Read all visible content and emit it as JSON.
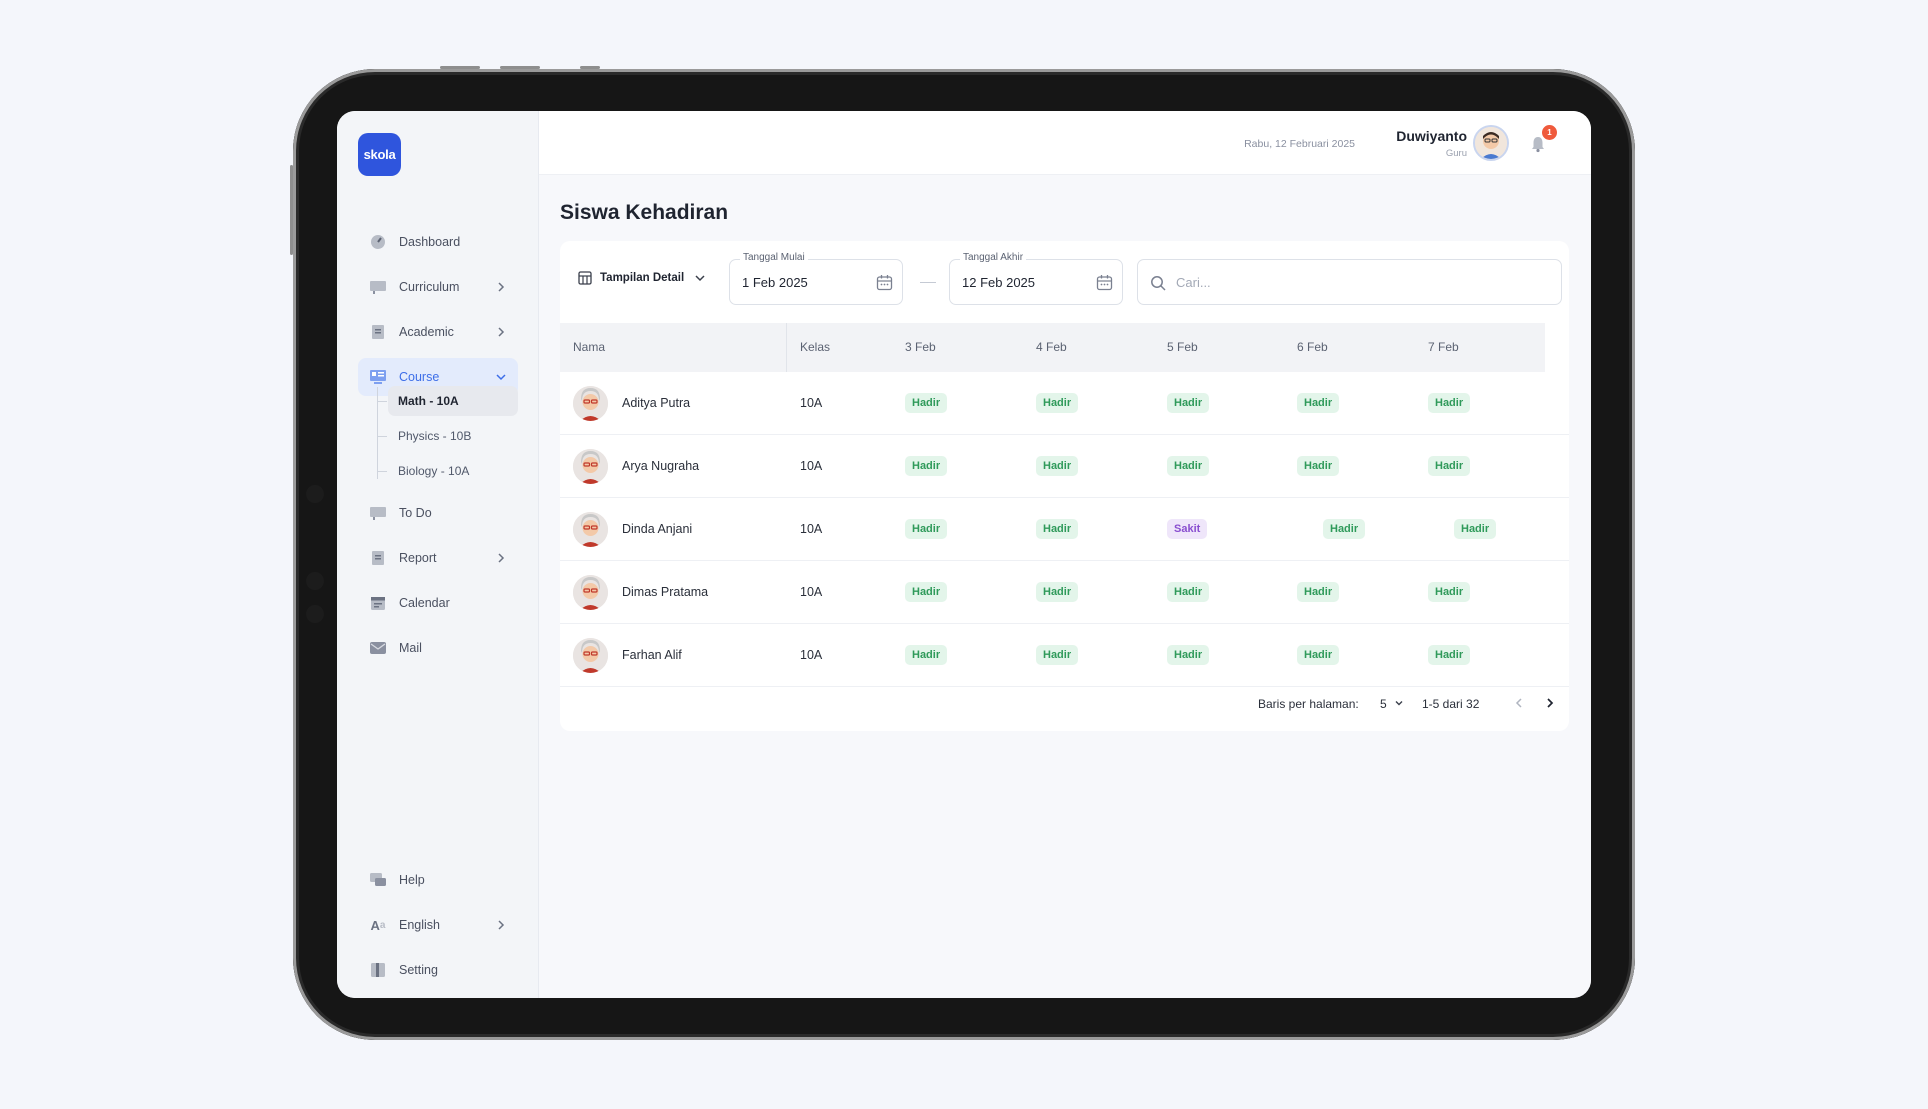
{
  "app": {
    "logo_text": "skola"
  },
  "header": {
    "date": "Rabu, 12 Februari 2025",
    "user_name": "Duwiyanto",
    "user_role": "Guru",
    "notification_count": "1"
  },
  "sidebar": {
    "items": [
      {
        "label": "Dashboard",
        "icon": "dashboard-icon"
      },
      {
        "label": "Curriculum",
        "icon": "curriculum-icon",
        "chevron": true
      },
      {
        "label": "Academic",
        "icon": "academic-icon",
        "chevron": true
      },
      {
        "label": "Course",
        "icon": "course-icon",
        "expanded": true,
        "active": true
      },
      {
        "label": "To Do",
        "icon": "todo-icon"
      },
      {
        "label": "Report",
        "icon": "report-icon",
        "chevron": true
      },
      {
        "label": "Calendar",
        "icon": "calendar-icon"
      },
      {
        "label": "Mail",
        "icon": "mail-icon"
      }
    ],
    "course_sub_items": [
      {
        "label": "Math - 10A",
        "active": true
      },
      {
        "label": "Physics - 10B"
      },
      {
        "label": "Biology - 10A"
      }
    ],
    "bottom_items": [
      {
        "label": "Help",
        "icon": "help-icon"
      },
      {
        "label": "English",
        "icon": "language-icon",
        "chevron": true
      },
      {
        "label": "Setting",
        "icon": "setting-icon"
      }
    ]
  },
  "main": {
    "title": "Siswa Kehadiran",
    "view_select": "Tampilan Detail",
    "start_date": {
      "label": "Tanggal Mulai",
      "value": "1 Feb 2025"
    },
    "end_date": {
      "label": "Tanggal Akhir",
      "value": "12 Feb 2025"
    },
    "search": {
      "placeholder": "Cari..."
    },
    "table": {
      "columns": [
        "Nama",
        "Kelas",
        "3 Feb",
        "4 Feb",
        "5 Feb",
        "6 Feb",
        "7 Feb"
      ],
      "rows": [
        {
          "name": "Aditya Putra",
          "kelas": "10A",
          "status": [
            "Hadir",
            "Hadir",
            "Hadir",
            "Hadir",
            "Hadir"
          ]
        },
        {
          "name": "Arya Nugraha",
          "kelas": "10A",
          "status": [
            "Hadir",
            "Hadir",
            "Hadir",
            "Hadir",
            "Hadir"
          ]
        },
        {
          "name": "Dinda Anjani",
          "kelas": "10A",
          "status": [
            "Hadir",
            "Hadir",
            "Sakit",
            "Hadir",
            "Hadir"
          ]
        },
        {
          "name": "Dimas Pratama",
          "kelas": "10A",
          "status": [
            "Hadir",
            "Hadir",
            "Hadir",
            "Hadir",
            "Hadir"
          ]
        },
        {
          "name": "Farhan Alif",
          "kelas": "10A",
          "status": [
            "Hadir",
            "Hadir",
            "Hadir",
            "Hadir",
            "Hadir"
          ]
        }
      ]
    },
    "pagination": {
      "rows_per_page_label": "Baris per halaman:",
      "rows_per_page": "5",
      "range": "1-5 dari 32"
    }
  },
  "colors": {
    "accent": "#2f55dd",
    "hadir": "#2f9a5a",
    "sakit": "#8a4fd0",
    "badge": "#ef5a3c"
  }
}
